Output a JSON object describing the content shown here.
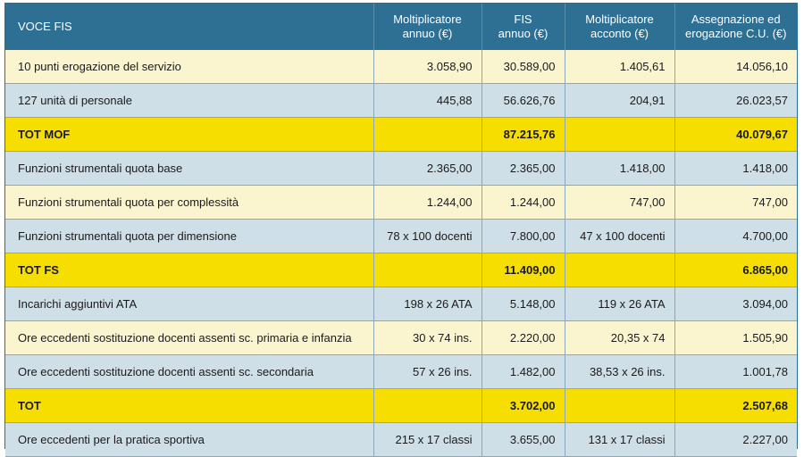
{
  "table": {
    "headers": [
      "VOCE FIS",
      [
        "Moltiplicatore",
        "annuo (€)"
      ],
      [
        "FIS",
        "annuo (€)"
      ],
      [
        "Moltiplicatore",
        "acconto (€)"
      ],
      [
        "Assegnazione ed",
        "erogazione C.U. (€)"
      ]
    ],
    "rows": [
      {
        "style": "light",
        "cells": [
          "10 punti erogazione del servizio",
          "3.058,90",
          "30.589,00",
          "1.405,61",
          "14.056,10"
        ]
      },
      {
        "style": "blue",
        "cells": [
          "127 unità di personale",
          "445,88",
          "56.626,76",
          "204,91",
          "26.023,57"
        ]
      },
      {
        "style": "tot",
        "cells": [
          "TOT MOF",
          "",
          "87.215,76",
          "",
          "40.079,67"
        ]
      },
      {
        "style": "blue",
        "cells": [
          "Funzioni strumentali quota base",
          "2.365,00",
          "2.365,00",
          "1.418,00",
          "1.418,00"
        ]
      },
      {
        "style": "light",
        "cells": [
          "Funzioni strumentali quota per complessità",
          "1.244,00",
          "1.244,00",
          "747,00",
          "747,00"
        ]
      },
      {
        "style": "blue",
        "cells": [
          "Funzioni strumentali quota per dimensione",
          "78 x 100 docenti",
          "7.800,00",
          "47 x 100 docenti",
          "4.700,00"
        ]
      },
      {
        "style": "tot",
        "cells": [
          "TOT FS",
          "",
          "11.409,00",
          "",
          "6.865,00"
        ]
      },
      {
        "style": "blue",
        "cells": [
          "Incarichi aggiuntivi ATA",
          "198 x 26 ATA",
          "5.148,00",
          "119 x 26 ATA",
          "3.094,00"
        ]
      },
      {
        "style": "light",
        "cells": [
          "Ore eccedenti sostituzione docenti assenti sc. primaria e infanzia",
          "30 x 74 ins.",
          "2.220,00",
          "20,35 x 74",
          "1.505,90"
        ]
      },
      {
        "style": "blue",
        "cells": [
          "Ore eccedenti sostituzione docenti assenti sc. secondaria",
          "57 x 26 ins.",
          "1.482,00",
          "38,53 x 26 ins.",
          "1.001,78"
        ]
      },
      {
        "style": "tot",
        "cells": [
          "TOT",
          "",
          "3.702,00",
          "",
          "2.507,68"
        ]
      },
      {
        "style": "blue",
        "cells": [
          "Ore eccedenti per la pratica sportiva",
          "215 x 17 classi",
          "3.655,00",
          "131 x 17 classi",
          "2.227,00"
        ]
      }
    ]
  }
}
